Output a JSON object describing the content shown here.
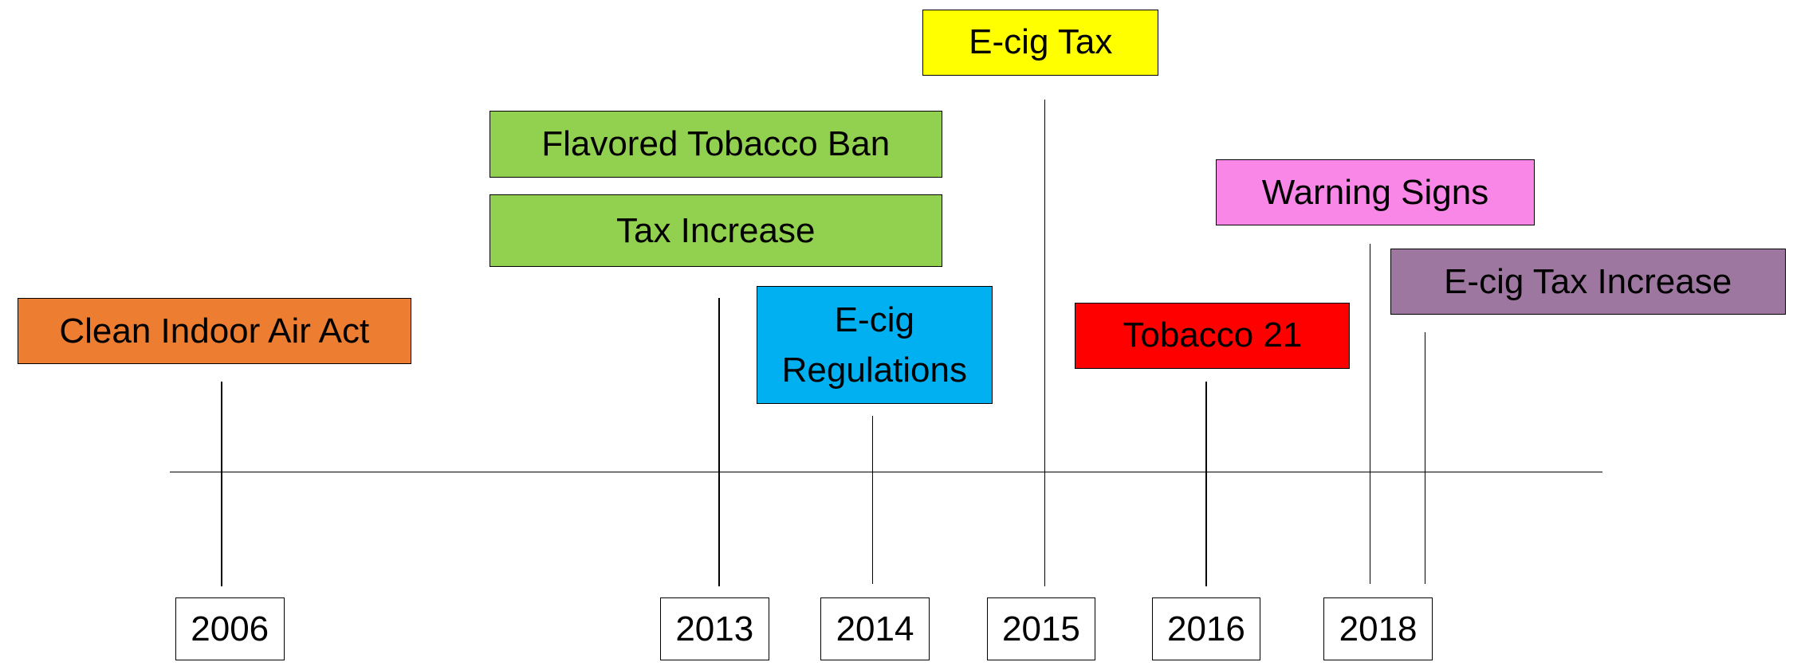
{
  "years": [
    "2006",
    "2013",
    "2014",
    "2015",
    "2016",
    "2018"
  ],
  "events": [
    {
      "label": "Clean Indoor Air Act",
      "color": "#ED7D31"
    },
    {
      "label": "Flavored Tobacco Ban",
      "color": "#92D050"
    },
    {
      "label": "Tax Increase",
      "color": "#92D050"
    },
    {
      "label": "E-cig Regulations",
      "color": "#00B0F0"
    },
    {
      "label": "E-cig Tax",
      "color": "#FFFF00"
    },
    {
      "label": "Tobacco 21",
      "color": "#FF0000"
    },
    {
      "label": "Warning Signs",
      "color": "#F987E8"
    },
    {
      "label": "E-cig Tax Increase",
      "color": "#9E77A1"
    }
  ]
}
